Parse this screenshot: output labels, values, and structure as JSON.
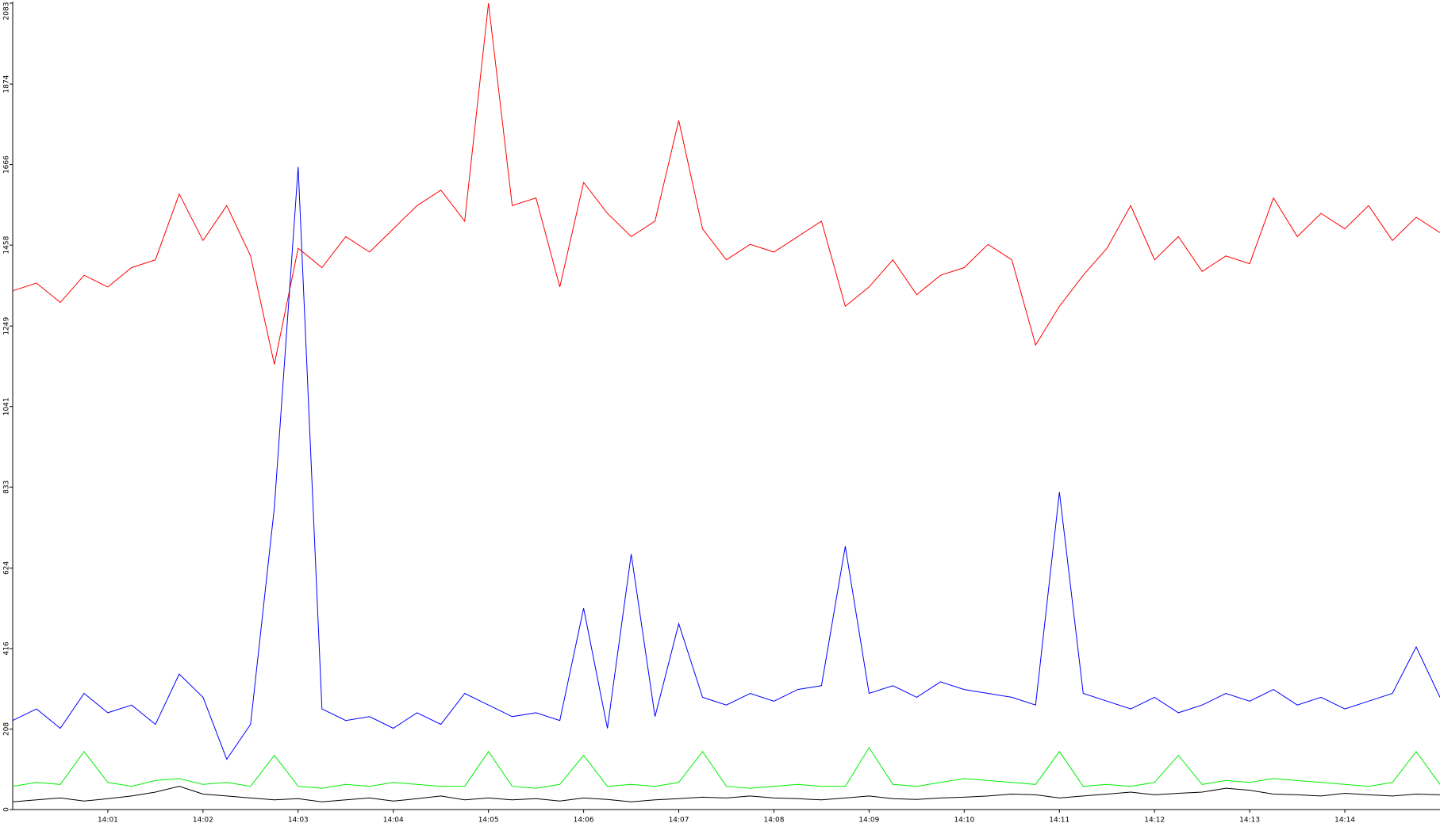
{
  "chart_data": {
    "type": "line",
    "x": [
      0,
      0.25,
      0.5,
      0.75,
      1,
      1.25,
      1.5,
      1.75,
      2,
      2.25,
      2.5,
      2.75,
      3,
      3.25,
      3.5,
      3.75,
      4,
      4.25,
      4.5,
      4.75,
      5,
      5.25,
      5.5,
      5.75,
      6,
      6.25,
      6.5,
      6.75,
      7,
      7.25,
      7.5,
      7.75,
      8,
      8.25,
      8.5,
      8.75,
      9,
      9.25,
      9.5,
      9.75,
      10,
      10.25,
      10.5,
      10.75,
      11,
      11.25,
      11.5,
      11.75,
      12,
      12.25,
      12.5,
      12.75,
      13,
      13.25,
      13.5,
      13.75,
      14,
      14.25,
      14.5,
      14.75,
      15
    ],
    "series": [
      {
        "color": "#ff0000",
        "values": [
          1340,
          1360,
          1310,
          1380,
          1350,
          1400,
          1420,
          1590,
          1470,
          1560,
          1430,
          1150,
          1450,
          1400,
          1480,
          1440,
          1500,
          1560,
          1600,
          1520,
          2083,
          1560,
          1580,
          1350,
          1620,
          1540,
          1480,
          1520,
          1780,
          1500,
          1420,
          1460,
          1440,
          1480,
          1520,
          1300,
          1350,
          1420,
          1330,
          1380,
          1400,
          1460,
          1420,
          1200,
          1300,
          1380,
          1450,
          1560,
          1420,
          1480,
          1390,
          1430,
          1410,
          1580,
          1480,
          1540,
          1500,
          1560,
          1470,
          1530,
          1490
        ]
      },
      {
        "color": "#0000ff",
        "values": [
          230,
          260,
          210,
          300,
          250,
          270,
          220,
          350,
          290,
          130,
          220,
          780,
          1660,
          260,
          230,
          240,
          210,
          250,
          220,
          300,
          270,
          240,
          250,
          230,
          520,
          210,
          660,
          240,
          480,
          290,
          270,
          300,
          280,
          310,
          320,
          680,
          300,
          320,
          290,
          330,
          310,
          300,
          290,
          270,
          820,
          300,
          280,
          260,
          290,
          250,
          270,
          300,
          280,
          310,
          270,
          290,
          260,
          280,
          300,
          420,
          290
        ]
      },
      {
        "color": "#00ee00",
        "values": [
          60,
          70,
          65,
          150,
          70,
          60,
          75,
          80,
          65,
          70,
          60,
          140,
          60,
          55,
          65,
          60,
          70,
          65,
          60,
          60,
          150,
          60,
          55,
          65,
          140,
          60,
          65,
          60,
          70,
          150,
          60,
          55,
          60,
          65,
          60,
          60,
          160,
          65,
          60,
          70,
          80,
          75,
          70,
          65,
          150,
          60,
          65,
          60,
          70,
          140,
          65,
          75,
          70,
          80,
          75,
          70,
          65,
          60,
          70,
          150,
          65
        ]
      },
      {
        "color": "#000000",
        "values": [
          20,
          25,
          30,
          22,
          28,
          35,
          45,
          60,
          40,
          35,
          30,
          25,
          28,
          20,
          25,
          30,
          22,
          28,
          35,
          25,
          30,
          25,
          28,
          22,
          30,
          26,
          20,
          25,
          28,
          32,
          30,
          35,
          30,
          28,
          25,
          30,
          35,
          28,
          26,
          30,
          32,
          35,
          40,
          38,
          30,
          35,
          40,
          45,
          38,
          42,
          45,
          55,
          50,
          40,
          38,
          35,
          42,
          38,
          35,
          40,
          38
        ]
      }
    ],
    "xlim": [
      0,
      15
    ],
    "xticks": [
      {
        "value": 1,
        "label": "14:01"
      },
      {
        "value": 2,
        "label": "14:02"
      },
      {
        "value": 3,
        "label": "14:03"
      },
      {
        "value": 4,
        "label": "14:04"
      },
      {
        "value": 5,
        "label": "14:05"
      },
      {
        "value": 6,
        "label": "14:06"
      },
      {
        "value": 7,
        "label": "14:07"
      },
      {
        "value": 8,
        "label": "14:08"
      },
      {
        "value": 9,
        "label": "14:09"
      },
      {
        "value": 10,
        "label": "14:10"
      },
      {
        "value": 11,
        "label": "14:11"
      },
      {
        "value": 12,
        "label": "14:12"
      },
      {
        "value": 13,
        "label": "14:13"
      },
      {
        "value": 14,
        "label": "14:14"
      }
    ],
    "ylim": [
      0,
      2083
    ],
    "yticks": [
      0,
      208,
      416,
      624,
      833,
      1041,
      1249,
      1458,
      1666,
      1874,
      2083
    ]
  }
}
